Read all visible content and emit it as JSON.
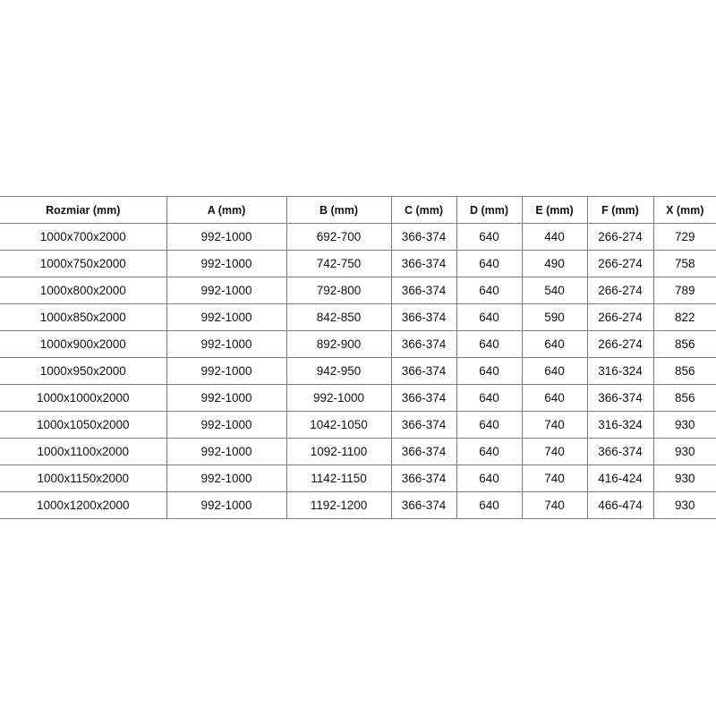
{
  "table": {
    "headers": [
      "Rozmiar (mm)",
      "A (mm)",
      "B (mm)",
      "C (mm)",
      "D (mm)",
      "E (mm)",
      "F (mm)",
      "X (mm)"
    ],
    "rows": [
      [
        "1000x700x2000",
        "992-1000",
        "692-700",
        "366-374",
        "640",
        "440",
        "266-274",
        "729"
      ],
      [
        "1000x750x2000",
        "992-1000",
        "742-750",
        "366-374",
        "640",
        "490",
        "266-274",
        "758"
      ],
      [
        "1000x800x2000",
        "992-1000",
        "792-800",
        "366-374",
        "640",
        "540",
        "266-274",
        "789"
      ],
      [
        "1000x850x2000",
        "992-1000",
        "842-850",
        "366-374",
        "640",
        "590",
        "266-274",
        "822"
      ],
      [
        "1000x900x2000",
        "992-1000",
        "892-900",
        "366-374",
        "640",
        "640",
        "266-274",
        "856"
      ],
      [
        "1000x950x2000",
        "992-1000",
        "942-950",
        "366-374",
        "640",
        "640",
        "316-324",
        "856"
      ],
      [
        "1000x1000x2000",
        "992-1000",
        "992-1000",
        "366-374",
        "640",
        "640",
        "366-374",
        "856"
      ],
      [
        "1000x1050x2000",
        "992-1000",
        "1042-1050",
        "366-374",
        "640",
        "740",
        "316-324",
        "930"
      ],
      [
        "1000x1100x2000",
        "992-1000",
        "1092-1100",
        "366-374",
        "640",
        "740",
        "366-374",
        "930"
      ],
      [
        "1000x1150x2000",
        "992-1000",
        "1142-1150",
        "366-374",
        "640",
        "740",
        "416-424",
        "930"
      ],
      [
        "1000x1200x2000",
        "992-1000",
        "1192-1200",
        "366-374",
        "640",
        "740",
        "466-474",
        "930"
      ]
    ]
  }
}
